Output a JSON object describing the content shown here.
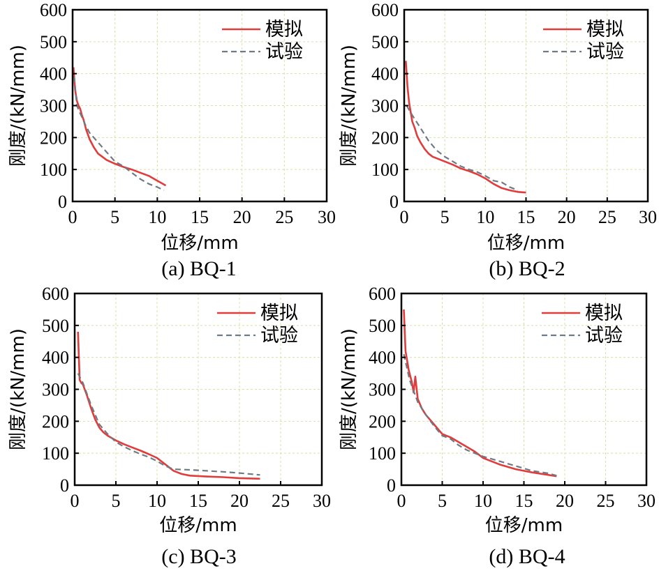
{
  "colors": {
    "simulation": "#e03c3c",
    "test": "#707a84"
  },
  "legend": {
    "simulation": "模拟",
    "test": "试验"
  },
  "chart_data": [
    {
      "type": "line",
      "caption": "(a) BQ-1",
      "xlabel": "位移/mm",
      "ylabel": "刚度/(kN/mm)",
      "xlim": [
        0,
        30
      ],
      "ylim": [
        0,
        600
      ],
      "xticks": [
        0,
        5,
        10,
        15,
        20,
        25,
        30
      ],
      "yticks": [
        0,
        100,
        200,
        300,
        400,
        500,
        600
      ],
      "series": [
        {
          "name": "模拟",
          "x": [
            0.1,
            0.3,
            0.5,
            0.7,
            0.9,
            1.1,
            1.3,
            1.6,
            2.0,
            2.5,
            3.0,
            3.5,
            4.0,
            5.0,
            6.0,
            7.0,
            8.0,
            9.0,
            10.0,
            11.0
          ],
          "y": [
            420,
            350,
            315,
            300,
            290,
            270,
            255,
            225,
            195,
            170,
            150,
            140,
            130,
            118,
            108,
            100,
            90,
            80,
            65,
            50
          ]
        },
        {
          "name": "试验",
          "x": [
            0.2,
            0.5,
            1.0,
            1.5,
            2.0,
            3.0,
            4.0,
            5.0,
            6.0,
            7.0,
            8.0,
            9.0,
            10.0,
            10.8
          ],
          "y": [
            390,
            300,
            270,
            240,
            215,
            185,
            155,
            125,
            110,
            90,
            70,
            55,
            45,
            35
          ]
        }
      ]
    },
    {
      "type": "line",
      "caption": "(b) BQ-2",
      "xlabel": "位移/mm",
      "ylabel": "刚度/(kN/mm)",
      "xlim": [
        0,
        30
      ],
      "ylim": [
        0,
        600
      ],
      "xticks": [
        0,
        5,
        10,
        15,
        20,
        25,
        30
      ],
      "yticks": [
        0,
        100,
        200,
        300,
        400,
        500,
        600
      ],
      "series": [
        {
          "name": "模拟",
          "x": [
            0.2,
            0.4,
            0.6,
            0.8,
            1.0,
            1.3,
            1.6,
            2.0,
            2.5,
            3.0,
            3.5,
            4.0,
            5.0,
            6.0,
            7.0,
            8.0,
            9.0,
            10.0,
            11.0,
            12.0,
            13.0,
            14.0,
            15.0
          ],
          "y": [
            440,
            360,
            310,
            280,
            250,
            230,
            205,
            185,
            165,
            150,
            140,
            135,
            125,
            115,
            103,
            95,
            85,
            72,
            55,
            42,
            35,
            30,
            28
          ]
        },
        {
          "name": "试验",
          "x": [
            0.3,
            1.0,
            2.0,
            3.0,
            4.0,
            5.0,
            6.0,
            7.0,
            8.0,
            9.0,
            10.0,
            11.0,
            12.0,
            13.0,
            14.0
          ],
          "y": [
            300,
            270,
            230,
            190,
            160,
            140,
            125,
            110,
            100,
            92,
            80,
            65,
            60,
            45,
            35
          ]
        }
      ]
    },
    {
      "type": "line",
      "caption": "(c) BQ-3",
      "xlabel": "位移/mm",
      "ylabel": "刚度/(kN/mm)",
      "xlim": [
        0,
        30
      ],
      "ylim": [
        0,
        600
      ],
      "xticks": [
        0,
        5,
        10,
        15,
        20,
        25,
        30
      ],
      "yticks": [
        0,
        100,
        200,
        300,
        400,
        500,
        600
      ],
      "series": [
        {
          "name": "模拟",
          "x": [
            0.4,
            0.6,
            0.8,
            1.0,
            1.5,
            2.0,
            2.5,
            3.0,
            3.5,
            4.0,
            5.0,
            6.0,
            7.0,
            8.0,
            9.0,
            10.0,
            11.0,
            12.0,
            13.0,
            14.0,
            16.0,
            18.0,
            20.0,
            22.5
          ],
          "y": [
            480,
            330,
            320,
            315,
            280,
            240,
            205,
            180,
            165,
            155,
            140,
            128,
            118,
            108,
            97,
            85,
            65,
            45,
            35,
            30,
            27,
            25,
            22,
            20
          ]
        },
        {
          "name": "试验",
          "x": [
            0.4,
            1.0,
            2.0,
            3.0,
            4.0,
            5.0,
            6.0,
            7.0,
            8.0,
            9.0,
            10.0,
            11.0,
            12.0,
            14.0,
            16.0,
            18.0,
            20.0,
            22.5
          ],
          "y": [
            350,
            320,
            250,
            190,
            160,
            135,
            120,
            108,
            97,
            88,
            75,
            60,
            50,
            48,
            45,
            42,
            38,
            32
          ]
        }
      ]
    },
    {
      "type": "line",
      "caption": "(d) BQ-4",
      "xlabel": "位移/mm",
      "ylabel": "刚度/(kN/mm)",
      "xlim": [
        0,
        30
      ],
      "ylim": [
        0,
        600
      ],
      "xticks": [
        0,
        5,
        10,
        15,
        20,
        25,
        30
      ],
      "yticks": [
        0,
        100,
        200,
        300,
        400,
        500,
        600
      ],
      "series": [
        {
          "name": "模拟",
          "x": [
            0.3,
            0.5,
            0.7,
            0.9,
            1.1,
            1.3,
            1.5,
            1.7,
            2.0,
            2.5,
            3.0,
            4.0,
            5.0,
            6.0,
            7.0,
            8.0,
            9.0,
            10.0,
            11.0,
            12.0,
            14.0,
            16.0,
            18.0,
            19.0
          ],
          "y": [
            550,
            420,
            390,
            360,
            340,
            320,
            290,
            340,
            270,
            240,
            220,
            190,
            160,
            150,
            135,
            120,
            105,
            85,
            75,
            65,
            50,
            40,
            32,
            28
          ]
        },
        {
          "name": "试验",
          "x": [
            0.3,
            1.0,
            2.0,
            3.0,
            4.0,
            5.0,
            6.0,
            7.0,
            8.0,
            9.0,
            10.0,
            12.0,
            14.0,
            16.0,
            18.0,
            19.0
          ],
          "y": [
            410,
            330,
            260,
            220,
            185,
            155,
            145,
            125,
            110,
            100,
            90,
            75,
            60,
            45,
            37,
            30
          ]
        }
      ]
    }
  ]
}
